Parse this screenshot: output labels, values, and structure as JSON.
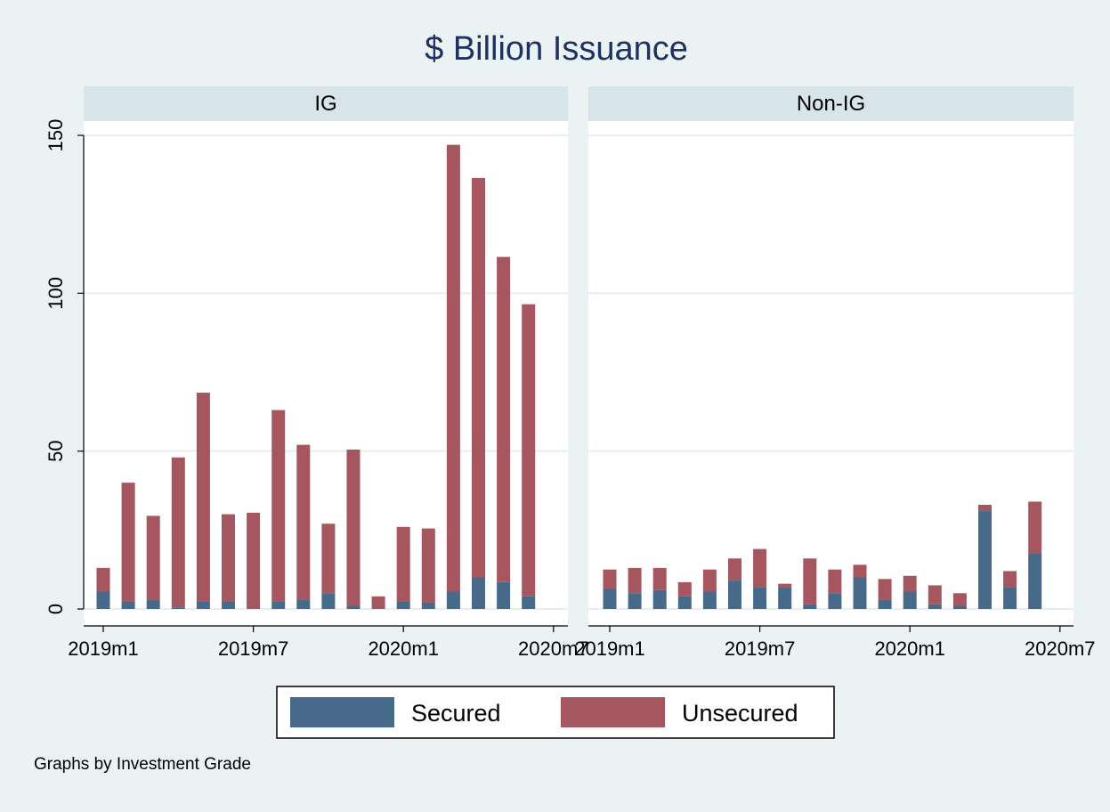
{
  "chart_data": {
    "type": "bar",
    "stacked": true,
    "title": "$ Billion Issuance",
    "note": "Graphs by Investment Grade",
    "ylim": [
      0,
      150
    ],
    "yticks": [
      0,
      50,
      100,
      150
    ],
    "xticks": [
      "2019m1",
      "2019m7",
      "2020m1",
      "2020m7"
    ],
    "grid": true,
    "legend_position": "bottom",
    "series": [
      {
        "name": "Secured",
        "color": "#47698a"
      },
      {
        "name": "Unsecured",
        "color": "#a5565f"
      }
    ],
    "categories": [
      "2019m1",
      "2019m2",
      "2019m3",
      "2019m4",
      "2019m5",
      "2019m6",
      "2019m7",
      "2019m8",
      "2019m9",
      "2019m10",
      "2019m11",
      "2019m12",
      "2020m1",
      "2020m2",
      "2020m3",
      "2020m4",
      "2020m5",
      "2020m6"
    ],
    "panels": [
      {
        "label": "IG",
        "secured": [
          5.5,
          2.5,
          3,
          0.5,
          2.5,
          2.5,
          0,
          2.5,
          3,
          5,
          1,
          0,
          2.5,
          2,
          5.5,
          10,
          8.5,
          4
        ],
        "unsecured": [
          7.5,
          37.5,
          26.5,
          47.5,
          66,
          27.5,
          30.5,
          60.5,
          49,
          22,
          49.5,
          4,
          23.5,
          23.5,
          141.5,
          126.5,
          103,
          92.5
        ]
      },
      {
        "label": "Non-IG",
        "secured": [
          6.5,
          5,
          6,
          4,
          5.5,
          9,
          7,
          7,
          1.5,
          5,
          10,
          3,
          5.5,
          1.5,
          1,
          31,
          7,
          17.5
        ],
        "unsecured": [
          6,
          8,
          7,
          4.5,
          7,
          7,
          12,
          1,
          14.5,
          7.5,
          4,
          6.5,
          5,
          6,
          4,
          2,
          5,
          16.5
        ]
      }
    ]
  }
}
